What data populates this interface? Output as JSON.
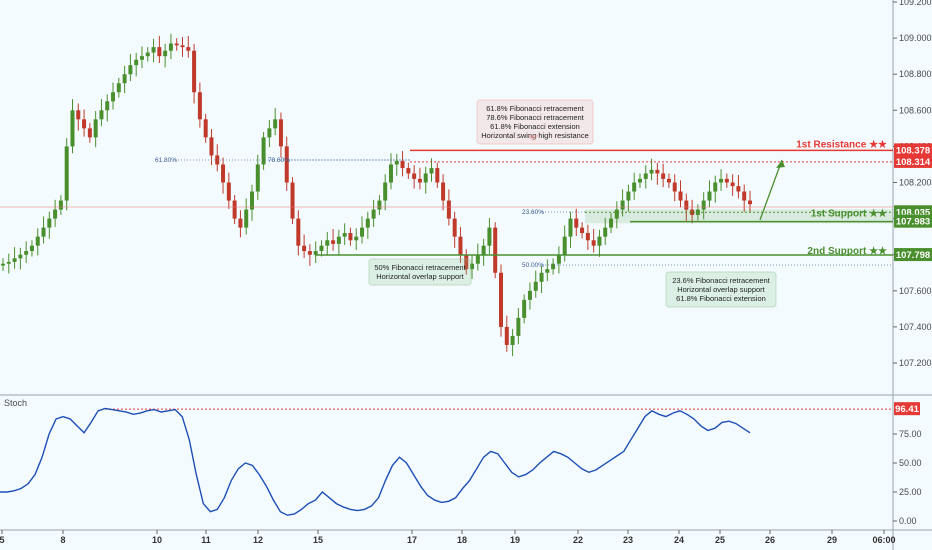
{
  "chart_data": [
    {
      "type": "candlestick",
      "title": "",
      "x_ticks": [
        "5",
        "8",
        "10",
        "11",
        "12",
        "15",
        "17",
        "18",
        "19",
        "22",
        "23",
        "24",
        "25",
        "26",
        "29",
        "06:00"
      ],
      "y_ticks": [
        "109.200",
        "109.000",
        "108.800",
        "108.600",
        "108.400",
        "108.200",
        "108.000",
        "107.800",
        "107.600",
        "107.400",
        "107.200"
      ],
      "ylim": [
        107.1,
        109.2
      ],
      "close_series": [
        107.75,
        107.76,
        107.78,
        107.8,
        107.82,
        107.85,
        107.9,
        107.95,
        108.0,
        108.05,
        108.1,
        108.4,
        108.6,
        108.55,
        108.5,
        108.45,
        108.55,
        108.6,
        108.65,
        108.7,
        108.75,
        108.8,
        108.85,
        108.88,
        108.9,
        108.92,
        108.95,
        108.9,
        108.93,
        108.97,
        108.96,
        108.95,
        108.93,
        108.7,
        108.55,
        108.45,
        108.35,
        108.3,
        108.2,
        108.1,
        108.0,
        107.95,
        108.05,
        108.15,
        108.3,
        108.45,
        108.5,
        108.55,
        108.4,
        108.2,
        108.0,
        107.85,
        107.82,
        107.8,
        107.82,
        107.85,
        107.88,
        107.86,
        107.9,
        107.92,
        107.88,
        107.9,
        107.95,
        108.0,
        108.05,
        108.1,
        108.2,
        108.3,
        108.32,
        108.28,
        108.25,
        108.22,
        108.2,
        108.25,
        108.28,
        108.2,
        108.1,
        108.0,
        107.9,
        107.8,
        107.72,
        107.75,
        107.8,
        107.85,
        107.95,
        107.7,
        107.4,
        107.3,
        107.35,
        107.45,
        107.55,
        107.6,
        107.65,
        107.7,
        107.72,
        107.75,
        107.8,
        107.9,
        108.0,
        107.95,
        107.92,
        107.88,
        107.85,
        107.9,
        107.95,
        108.0,
        108.05,
        108.1,
        108.15,
        108.2,
        108.22,
        108.25,
        108.27,
        108.25,
        108.22,
        108.2,
        108.15,
        108.1,
        108.05,
        108.02,
        108.05,
        108.1,
        108.15,
        108.2,
        108.22,
        108.2,
        108.18,
        108.15,
        108.1,
        108.08
      ],
      "horizontal_levels": [
        {
          "name": "1st Resistance ★★",
          "value": "108.378",
          "color": "#e53935"
        },
        {
          "name": "",
          "value": "108.314",
          "color": "#e53935"
        },
        {
          "name": "1st Support ★★",
          "value": "108.035",
          "color": "#4a8f2e"
        },
        {
          "name": "",
          "value": "107.983",
          "color": "#4a8f2e"
        },
        {
          "name": "2nd Support ★★",
          "value": "107.798",
          "color": "#4a8f2e"
        }
      ],
      "fib_labels": [
        "61.80%",
        "78.60%",
        "23.60%",
        "50.00%"
      ],
      "annotations": [
        [
          "61.8%  Fibonacci retracement",
          "78.6% Fibonacci retracement",
          "61.8% Fibonacci extension",
          "Horizontal swing high resistance"
        ],
        [
          "50% Fibonacci retracement",
          "Horizontal overlap support"
        ],
        [
          "23.6% Fibonacci retracement",
          "Horizontal overlap support",
          "61.8% Fibonacci extension"
        ]
      ]
    },
    {
      "type": "line",
      "title": "Stoch",
      "y_ticks": [
        "75.00",
        "50.00",
        "25.00",
        "0.00"
      ],
      "ylim": [
        -5,
        110
      ],
      "level": "96.41",
      "values": [
        25,
        25,
        26,
        28,
        32,
        40,
        55,
        75,
        88,
        90,
        88,
        82,
        76,
        85,
        95,
        97,
        96,
        95,
        94,
        92,
        93,
        95,
        96,
        94,
        95,
        96,
        90,
        70,
        40,
        15,
        8,
        10,
        20,
        35,
        45,
        50,
        48,
        40,
        30,
        18,
        8,
        5,
        6,
        10,
        15,
        18,
        25,
        20,
        15,
        12,
        10,
        9,
        10,
        13,
        20,
        35,
        48,
        55,
        50,
        40,
        30,
        22,
        18,
        16,
        17,
        20,
        28,
        35,
        45,
        55,
        60,
        58,
        50,
        42,
        38,
        40,
        44,
        50,
        55,
        60,
        58,
        55,
        50,
        45,
        42,
        44,
        48,
        52,
        56,
        60,
        70,
        80,
        90,
        95,
        92,
        90,
        93,
        95,
        92,
        88,
        82,
        78,
        80,
        85,
        86,
        84,
        80,
        76
      ],
      "marker": "96.41"
    }
  ],
  "colors": {
    "background": "#f3fbfe",
    "up": "#4a8f2e",
    "down": "#c0392b",
    "resistance": "#e53935",
    "support": "#4a8f2e",
    "stoch": "#1e4fb5"
  }
}
